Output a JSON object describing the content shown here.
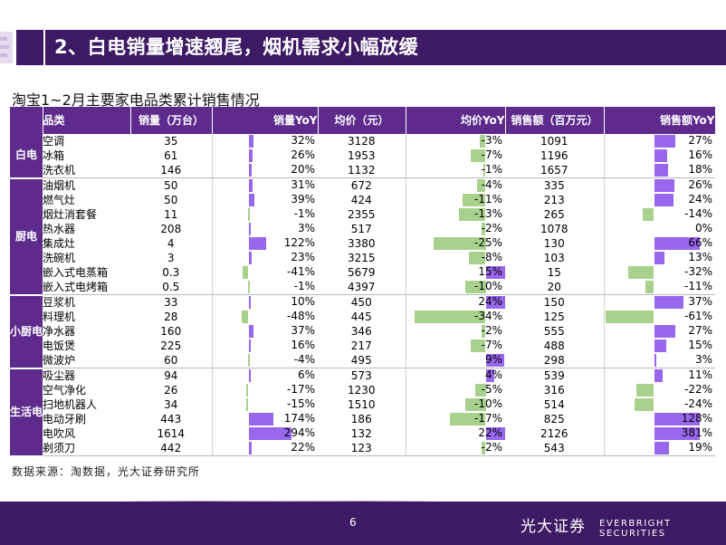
{
  "slide": {
    "title": "2、白电销量增速翘尾，烟机需求小幅放缓",
    "subtitle": "淘宝1~2月主要家电品类累计销售情况",
    "source": "数据来源：淘数据，光大证券研究所",
    "page_number": "6",
    "brand_cn": "光大证券",
    "brand_en": "EVERBRIGHT SECURITIES"
  },
  "colors": {
    "purple": "#5e2a8c",
    "dark_purple": "#3d1a63",
    "bar_positive": "#9966ee",
    "bar_negative": "#a9d18e"
  },
  "table": {
    "headers": [
      "品类",
      "销量（万台）",
      "销量YoY",
      "均价（元）",
      "均价YoY",
      "销售额（百万元）",
      "销售额YoY"
    ],
    "groups": [
      {
        "name": "白电",
        "rows": [
          {
            "item": "空调",
            "sales": "35",
            "sales_yoy": "32%",
            "sales_yoy_v": 32,
            "price": "3128",
            "price_yoy": "-3%",
            "price_yoy_v": -3,
            "revenue": "1091",
            "revenue_yoy": "27%",
            "revenue_yoy_v": 27
          },
          {
            "item": "冰箱",
            "sales": "61",
            "sales_yoy": "26%",
            "sales_yoy_v": 26,
            "price": "1953",
            "price_yoy": "-7%",
            "price_yoy_v": -7,
            "revenue": "1196",
            "revenue_yoy": "16%",
            "revenue_yoy_v": 16
          },
          {
            "item": "洗衣机",
            "sales": "146",
            "sales_yoy": "20%",
            "sales_yoy_v": 20,
            "price": "1132",
            "price_yoy": "-1%",
            "price_yoy_v": -1,
            "revenue": "1657",
            "revenue_yoy": "18%",
            "revenue_yoy_v": 18
          }
        ]
      },
      {
        "name": "厨电",
        "rows": [
          {
            "item": "油烟机",
            "sales": "50",
            "sales_yoy": "31%",
            "sales_yoy_v": 31,
            "price": "672",
            "price_yoy": "-4%",
            "price_yoy_v": -4,
            "revenue": "335",
            "revenue_yoy": "26%",
            "revenue_yoy_v": 26
          },
          {
            "item": "燃气灶",
            "sales": "50",
            "sales_yoy": "39%",
            "sales_yoy_v": 39,
            "price": "424",
            "price_yoy": "-11%",
            "price_yoy_v": -11,
            "revenue": "213",
            "revenue_yoy": "24%",
            "revenue_yoy_v": 24
          },
          {
            "item": "烟灶消套餐",
            "sales": "11",
            "sales_yoy": "-1%",
            "sales_yoy_v": -1,
            "price": "2355",
            "price_yoy": "-13%",
            "price_yoy_v": -13,
            "revenue": "265",
            "revenue_yoy": "-14%",
            "revenue_yoy_v": -14
          },
          {
            "item": "热水器",
            "sales": "208",
            "sales_yoy": "3%",
            "sales_yoy_v": 3,
            "price": "517",
            "price_yoy": "-2%",
            "price_yoy_v": -2,
            "revenue": "1078",
            "revenue_yoy": "0%",
            "revenue_yoy_v": 0
          },
          {
            "item": "集成灶",
            "sales": "4",
            "sales_yoy": "122%",
            "sales_yoy_v": 122,
            "price": "3380",
            "price_yoy": "-25%",
            "price_yoy_v": -25,
            "revenue": "130",
            "revenue_yoy": "66%",
            "revenue_yoy_v": 66
          },
          {
            "item": "洗碗机",
            "sales": "3",
            "sales_yoy": "23%",
            "sales_yoy_v": 23,
            "price": "3215",
            "price_yoy": "-8%",
            "price_yoy_v": -8,
            "revenue": "103",
            "revenue_yoy": "13%",
            "revenue_yoy_v": 13
          },
          {
            "item": "嵌入式电蒸箱",
            "sales": "0.3",
            "sales_yoy": "-41%",
            "sales_yoy_v": -41,
            "price": "5679",
            "price_yoy": "15%",
            "price_yoy_v": 15,
            "revenue": "15",
            "revenue_yoy": "-32%",
            "revenue_yoy_v": -32
          },
          {
            "item": "嵌入式电烤箱",
            "sales": "0.5",
            "sales_yoy": "-1%",
            "sales_yoy_v": -1,
            "price": "4397",
            "price_yoy": "-10%",
            "price_yoy_v": -10,
            "revenue": "20",
            "revenue_yoy": "-11%",
            "revenue_yoy_v": -11
          }
        ]
      },
      {
        "name": "小厨电",
        "rows": [
          {
            "item": "豆浆机",
            "sales": "33",
            "sales_yoy": "10%",
            "sales_yoy_v": 10,
            "price": "450",
            "price_yoy": "24%",
            "price_yoy_v": 24,
            "revenue": "150",
            "revenue_yoy": "37%",
            "revenue_yoy_v": 37
          },
          {
            "item": "料理机",
            "sales": "28",
            "sales_yoy": "-48%",
            "sales_yoy_v": -48,
            "price": "445",
            "price_yoy": "-34%",
            "price_yoy_v": -34,
            "revenue": "125",
            "revenue_yoy": "-61%",
            "revenue_yoy_v": -61
          },
          {
            "item": "净水器",
            "sales": "160",
            "sales_yoy": "37%",
            "sales_yoy_v": 37,
            "price": "346",
            "price_yoy": "-2%",
            "price_yoy_v": -2,
            "revenue": "555",
            "revenue_yoy": "27%",
            "revenue_yoy_v": 27
          },
          {
            "item": "电饭煲",
            "sales": "225",
            "sales_yoy": "16%",
            "sales_yoy_v": 16,
            "price": "217",
            "price_yoy": "-7%",
            "price_yoy_v": -7,
            "revenue": "488",
            "revenue_yoy": "15%",
            "revenue_yoy_v": 15
          },
          {
            "item": "微波炉",
            "sales": "60",
            "sales_yoy": "-4%",
            "sales_yoy_v": -4,
            "price": "495",
            "price_yoy": "9%",
            "price_yoy_v": 9,
            "revenue": "298",
            "revenue_yoy": "3%",
            "revenue_yoy_v": 3
          }
        ]
      },
      {
        "name": "生活电器",
        "rows": [
          {
            "item": "吸尘器",
            "sales": "94",
            "sales_yoy": "6%",
            "sales_yoy_v": 6,
            "price": "573",
            "price_yoy": "4%",
            "price_yoy_v": 4,
            "revenue": "539",
            "revenue_yoy": "11%",
            "revenue_yoy_v": 11
          },
          {
            "item": "空气净化",
            "sales": "26",
            "sales_yoy": "-17%",
            "sales_yoy_v": -17,
            "price": "1230",
            "price_yoy": "-5%",
            "price_yoy_v": -5,
            "revenue": "316",
            "revenue_yoy": "-22%",
            "revenue_yoy_v": -22
          },
          {
            "item": "扫地机器人",
            "sales": "34",
            "sales_yoy": "-15%",
            "sales_yoy_v": -15,
            "price": "1510",
            "price_yoy": "-10%",
            "price_yoy_v": -10,
            "revenue": "514",
            "revenue_yoy": "-24%",
            "revenue_yoy_v": -24
          },
          {
            "item": "电动牙刷",
            "sales": "443",
            "sales_yoy": "174%",
            "sales_yoy_v": 174,
            "price": "186",
            "price_yoy": "-17%",
            "price_yoy_v": -17,
            "revenue": "825",
            "revenue_yoy": "128%",
            "revenue_yoy_v": 128
          },
          {
            "item": "电吹风",
            "sales": "1614",
            "sales_yoy": "294%",
            "sales_yoy_v": 294,
            "price": "132",
            "price_yoy": "22%",
            "price_yoy_v": 22,
            "revenue": "2126",
            "revenue_yoy": "381%",
            "revenue_yoy_v": 381
          },
          {
            "item": "剃须刀",
            "sales": "442",
            "sales_yoy": "22%",
            "sales_yoy_v": 22,
            "price": "123",
            "price_yoy": "-2%",
            "price_yoy_v": -2,
            "revenue": "543",
            "revenue_yoy": "19%",
            "revenue_yoy_v": 19
          }
        ]
      }
    ]
  }
}
